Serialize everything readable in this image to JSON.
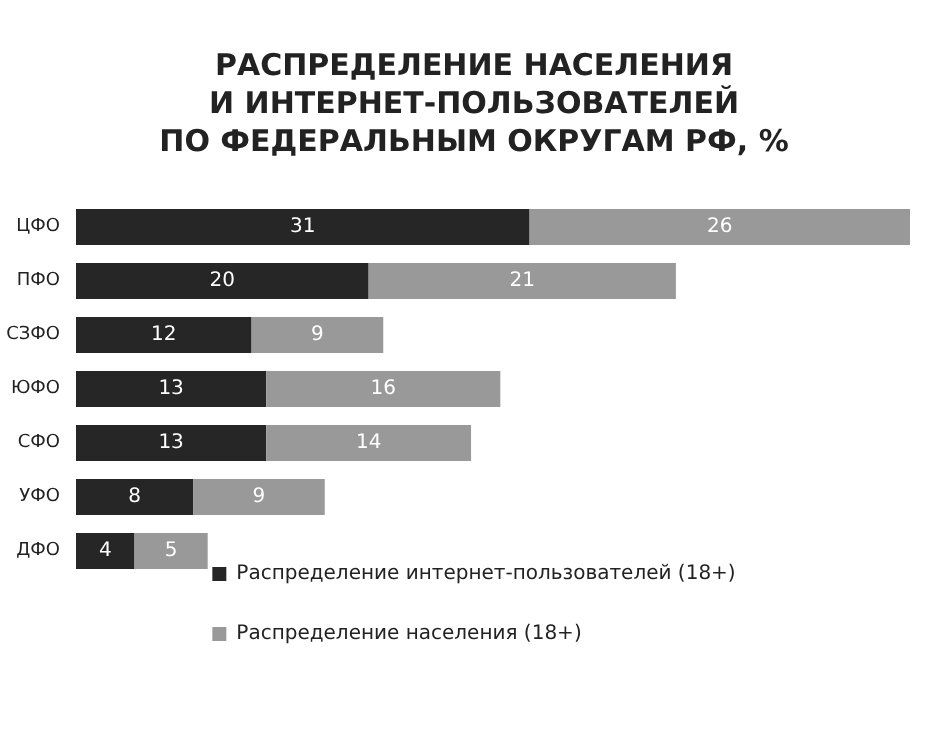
{
  "chart_data": {
    "type": "bar",
    "title": "РАСПРЕДЕЛЕНИЕ НАСЕЛЕНИЯ\nИ ИНТЕРНЕТ-ПОЛЬЗОВАТЕЛЕЙ\nПО ФЕДЕРАЛЬНЫМ ОКРУГАМ РФ, %",
    "orientation": "horizontal",
    "stacked": true,
    "data_labels": true,
    "legend": "bottom",
    "categories": [
      "ЦФО",
      "ПФО",
      "СЗФО",
      "ЮФО",
      "СФО",
      "УФО",
      "ДФО"
    ],
    "series": [
      {
        "name": "Распределение интернет-пользователей (18+)",
        "color": "#262626",
        "values": [
          31,
          20,
          12,
          13,
          13,
          8,
          4
        ]
      },
      {
        "name": "Распределение населения (18+)",
        "color": "#999999",
        "values": [
          26,
          21,
          9,
          16,
          14,
          9,
          5
        ]
      }
    ]
  }
}
